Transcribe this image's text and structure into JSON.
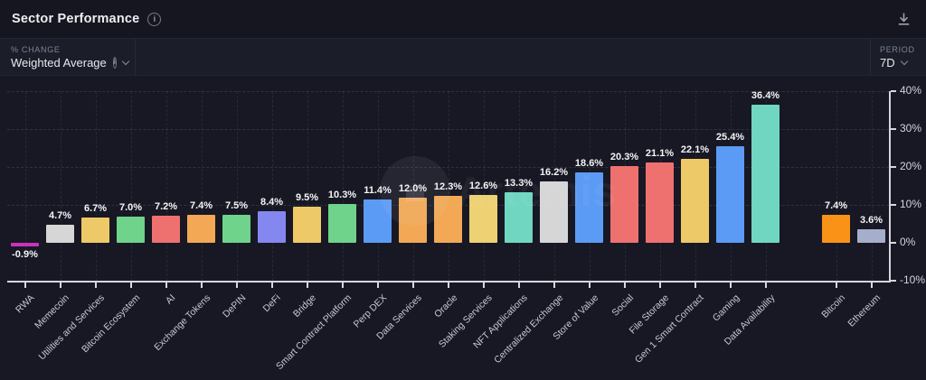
{
  "header": {
    "title": "Sector Performance"
  },
  "toolbar": {
    "metric_label": "% CHANGE",
    "metric_value": "Weighted Average",
    "period_label": "PERIOD",
    "period_value": "7D"
  },
  "icons": {
    "info": "i",
    "download": "download-arrow-into-tray"
  },
  "watermark": {
    "text": "Artemis"
  },
  "colors": {
    "background": "#15161f",
    "subheader_background": "#1b1d28",
    "axis": "#d5d7dd",
    "gridline": "rgba(172,182,206,0.14)",
    "value_label": "#f4f5f7",
    "tick_label": "#c6c9d2"
  },
  "chart_data": {
    "type": "bar",
    "title": "Sector Performance",
    "xlabel": "",
    "ylabel": "% change (Weighted Average, 7D)",
    "ylim": [
      -10,
      40
    ],
    "yticks": [
      40,
      30,
      20,
      10,
      0,
      -10
    ],
    "ytick_suffix": "%",
    "grid": true,
    "legend": false,
    "value_label_decimals": 1,
    "value_label_suffix": "%",
    "benchmark_gap_after_index": 21,
    "categories": [
      "RWA",
      "Memecoin",
      "Utilities and Services",
      "Bitcoin Ecosystem",
      "AI",
      "Exchange Tokens",
      "DePIN",
      "DeFi",
      "Bridge",
      "Smart Contract Platform",
      "Perp DEX",
      "Data Services",
      "Oracle",
      "Staking Services",
      "NFT Applications",
      "Centralized Exchange",
      "Store of Value",
      "Social",
      "File Storage",
      "Gen 1 Smart Contract",
      "Gaming",
      "Data Availability",
      "Bitcoin",
      "Ethereum"
    ],
    "values": [
      -0.9,
      4.7,
      6.7,
      7.0,
      7.2,
      7.4,
      7.5,
      8.4,
      9.5,
      10.3,
      11.4,
      12.0,
      12.3,
      12.6,
      13.3,
      16.2,
      18.6,
      20.3,
      21.1,
      22.1,
      25.4,
      36.4,
      7.4,
      3.6
    ],
    "colors": [
      "#cb31bd",
      "#d6d6d6",
      "#edc968",
      "#6fd38c",
      "#ee7170",
      "#f2a854",
      "#6fd38c",
      "#8487ef",
      "#edc968",
      "#6fd38c",
      "#5c9bf5",
      "#f2a854",
      "#f2a854",
      "#eed173",
      "#70d6c2",
      "#d6d6d6",
      "#5c9bf5",
      "#ee7170",
      "#ee7170",
      "#edc968",
      "#5c9bf5",
      "#70d6c2",
      "#fb9218",
      "#a5aecb"
    ]
  }
}
